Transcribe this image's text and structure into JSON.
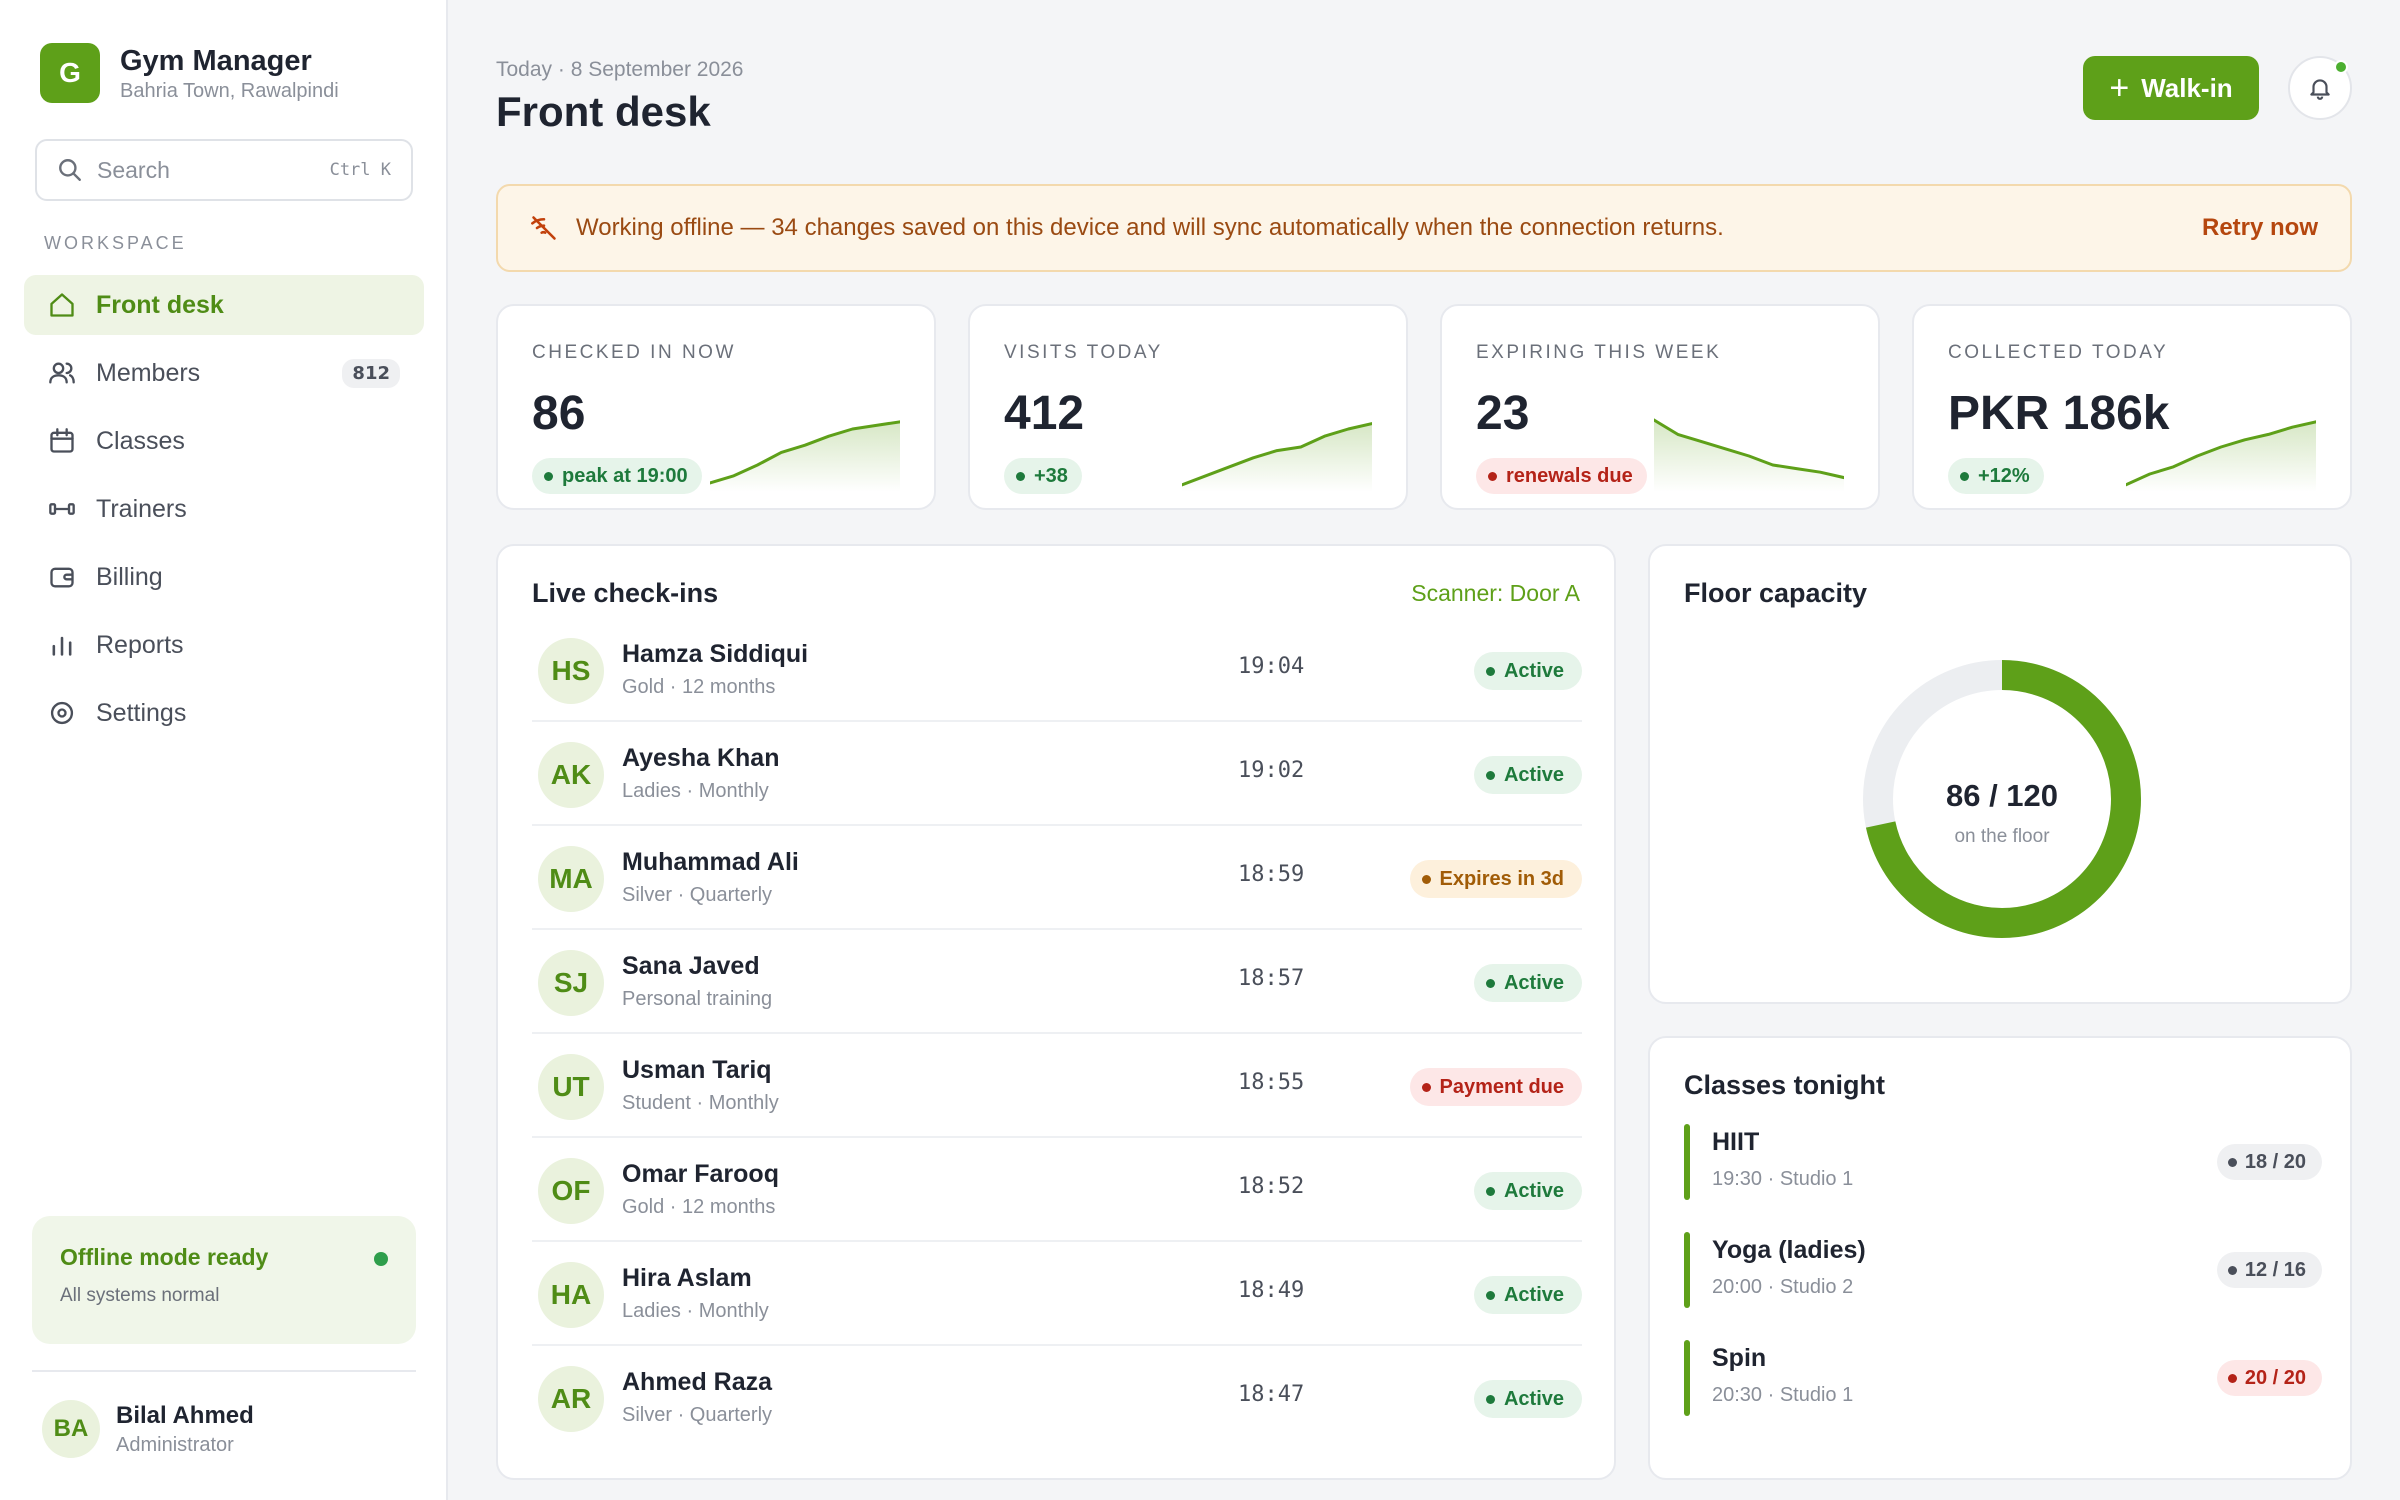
{
  "brand": {
    "logo_letter": "G",
    "name": "Gym Manager",
    "location": "Bahria Town, Rawalpindi"
  },
  "search": {
    "placeholder": "Search",
    "shortcut": "Ctrl K"
  },
  "sidebar": {
    "section_label": "WORKSPACE",
    "items": [
      {
        "label": "Front desk",
        "icon": "home-icon",
        "active": true
      },
      {
        "label": "Members",
        "icon": "users-icon",
        "badge": "812"
      },
      {
        "label": "Classes",
        "icon": "calendar-icon"
      },
      {
        "label": "Trainers",
        "icon": "dumbbell-icon"
      },
      {
        "label": "Billing",
        "icon": "wallet-icon"
      },
      {
        "label": "Reports",
        "icon": "bar-chart-icon"
      },
      {
        "label": "Settings",
        "icon": "gear-icon"
      }
    ],
    "offline_card": {
      "title": "Offline mode ready",
      "subtitle": "All systems normal"
    },
    "user": {
      "initials": "BA",
      "name": "Bilal Ahmed",
      "role": "Administrator"
    }
  },
  "header": {
    "date_line": "Today · 8 September 2026",
    "title": "Front desk",
    "walkin_label": "Walk-in",
    "bell_icon": "bell-icon"
  },
  "banner": {
    "text": "Working offline — 34 changes saved on this device and will sync automatically when the connection returns.",
    "action": "Retry now",
    "icon": "wifi-off-icon"
  },
  "stats": [
    {
      "label": "CHECKED IN NOW",
      "value": "86",
      "badge": "peak at 19:00",
      "tone": "green",
      "trend": [
        10,
        18,
        30,
        44,
        52,
        62,
        70,
        74,
        78
      ]
    },
    {
      "label": "VISITS TODAY",
      "value": "412",
      "badge": "+38",
      "tone": "green",
      "trend": [
        8,
        18,
        28,
        38,
        46,
        50,
        62,
        70,
        76
      ]
    },
    {
      "label": "EXPIRING THIS WEEK",
      "value": "23",
      "badge": "renewals due",
      "tone": "red",
      "trend": [
        80,
        64,
        56,
        48,
        40,
        30,
        26,
        22,
        16
      ]
    },
    {
      "label": "COLLECTED TODAY",
      "value": "PKR 186k",
      "badge": "+12%",
      "tone": "green",
      "trend": [
        8,
        20,
        28,
        40,
        50,
        58,
        64,
        72,
        78
      ]
    }
  ],
  "checkins": {
    "title": "Live check-ins",
    "scanner": "Scanner: Door A",
    "rows": [
      {
        "initials": "HS",
        "name": "Hamza Siddiqui",
        "plan": "Gold · 12 months",
        "time": "19:04",
        "status": "Active",
        "tone": "active"
      },
      {
        "initials": "AK",
        "name": "Ayesha Khan",
        "plan": "Ladies · Monthly",
        "time": "19:02",
        "status": "Active",
        "tone": "active"
      },
      {
        "initials": "MA",
        "name": "Muhammad Ali",
        "plan": "Silver · Quarterly",
        "time": "18:59",
        "status": "Expires in 3d",
        "tone": "warn"
      },
      {
        "initials": "SJ",
        "name": "Sana Javed",
        "plan": "Personal training",
        "time": "18:57",
        "status": "Active",
        "tone": "active"
      },
      {
        "initials": "UT",
        "name": "Usman Tariq",
        "plan": "Student · Monthly",
        "time": "18:55",
        "status": "Payment due",
        "tone": "due"
      },
      {
        "initials": "OF",
        "name": "Omar Farooq",
        "plan": "Gold · 12 months",
        "time": "18:52",
        "status": "Active",
        "tone": "active"
      },
      {
        "initials": "HA",
        "name": "Hira Aslam",
        "plan": "Ladies · Monthly",
        "time": "18:49",
        "status": "Active",
        "tone": "active"
      },
      {
        "initials": "AR",
        "name": "Ahmed Raza",
        "plan": "Silver · Quarterly",
        "time": "18:47",
        "status": "Active",
        "tone": "active"
      }
    ]
  },
  "capacity": {
    "title": "Floor capacity",
    "current": 86,
    "max": 120,
    "value_text": "86 / 120",
    "label": "on the floor"
  },
  "classes": {
    "title": "Classes tonight",
    "items": [
      {
        "name": "HIIT",
        "meta": "19:30 · Studio 1",
        "count": "18 / 20",
        "tone": "neutral"
      },
      {
        "name": "Yoga (ladies)",
        "meta": "20:00 · Studio 2",
        "count": "12 / 16",
        "tone": "neutral"
      },
      {
        "name": "Spin",
        "meta": "20:30 · Studio 1",
        "count": "20 / 20",
        "tone": "full"
      }
    ]
  },
  "colors": {
    "accent": "#5ea019",
    "active": "#1e7a3c",
    "warning": "#a15c07",
    "danger": "#b42318",
    "track": "#eceef1"
  }
}
